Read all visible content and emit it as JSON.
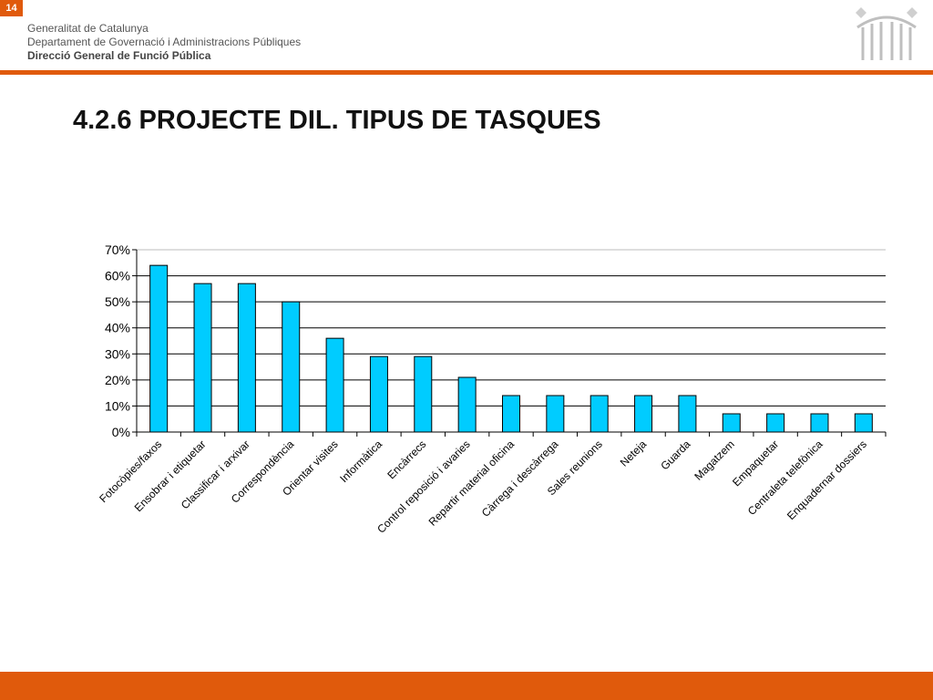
{
  "slide": {
    "number": "14"
  },
  "header": {
    "line1": "Generalitat de Catalunya",
    "line2": "Departament de Governació i Administracions Públiques",
    "line3": "Direcció General de Funció Pública"
  },
  "title": "4.2.6 PROJECTE DIL. TIPUS DE TASQUES",
  "colors": {
    "accent": "#e05a0c",
    "bar": "#00ccff",
    "bar_outline": "#000000"
  },
  "chart_data": {
    "type": "bar",
    "categories": [
      "Fotocòpies/faxos",
      "Ensobrar i etiquetar",
      "Classificar i arxivar",
      "Correspondència",
      "Orientar visites",
      "Informàtica",
      "Encàrrecs",
      "Control reposició i avaries",
      "Repartir material oficina",
      "Càrrega i descàrrega",
      "Sales reunions",
      "Neteja",
      "Guarda",
      "Magatzem",
      "Empaquetar",
      "Centraleta telefònica",
      "Enquadernar dossiers"
    ],
    "values": [
      64,
      57,
      57,
      50,
      36,
      29,
      29,
      21,
      14,
      14,
      14,
      14,
      14,
      7,
      7,
      7,
      7
    ],
    "ylim": [
      0,
      70
    ],
    "yticks": [
      "0%",
      "10%",
      "20%",
      "30%",
      "40%",
      "50%",
      "60%",
      "70%"
    ],
    "grid": true,
    "legend": "none"
  }
}
